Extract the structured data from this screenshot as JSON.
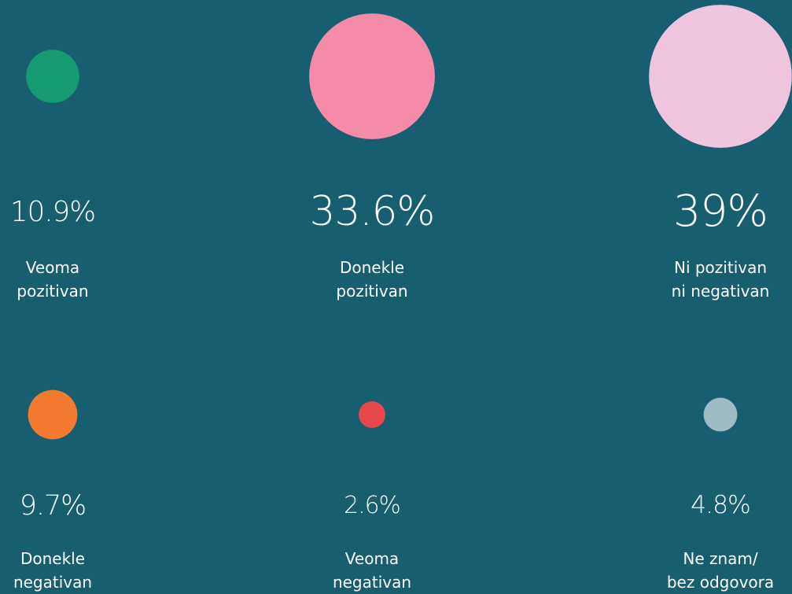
{
  "chart_data": {
    "type": "bubble",
    "categories": [
      "Veoma\npozitivan",
      "Donekle\npozitivan",
      "Ni pozitivan\nni negativan",
      "Donekle\nnegativan",
      "Veoma\nnegativan",
      "Ne znam/\nbez odgovora"
    ],
    "values": [
      10.9,
      33.6,
      39,
      9.7,
      2.6,
      4.8
    ],
    "value_labels": [
      "10.9%",
      "33.6%",
      "39%",
      "9.7%",
      "2.6%",
      "4.8%"
    ],
    "colors": [
      "#159a72",
      "#f48ba8",
      "#efc5dd",
      "#f47a30",
      "#e8474b",
      "#9fbcc4"
    ]
  }
}
